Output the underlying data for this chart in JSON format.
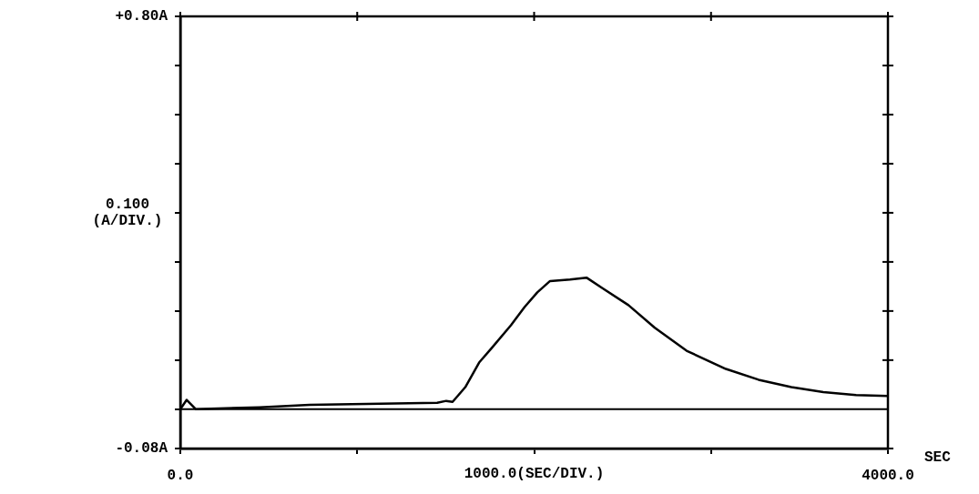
{
  "chart_data": {
    "type": "line",
    "xlabel": "1000.0(SEC/DIV.)",
    "ylabel": "0.100 (A/DIV.)",
    "annotations": [
      "SEC"
    ],
    "x": [
      0,
      36,
      88,
      448,
      731,
      1452,
      1503,
      1539,
      1611,
      1689,
      1761,
      1869,
      1946,
      2018,
      2090,
      2203,
      2296,
      2384,
      2533,
      2682,
      2862,
      3084,
      3269,
      3454,
      3635,
      3820,
      4000
    ],
    "values": [
      0,
      0.019,
      0,
      0.004,
      0.009,
      0.013,
      0.017,
      0.015,
      0.045,
      0.095,
      0.125,
      0.171,
      0.208,
      0.238,
      0.261,
      0.264,
      0.268,
      0.247,
      0.212,
      0.166,
      0.119,
      0.082,
      0.06,
      0.045,
      0.035,
      0.029,
      0.027
    ],
    "color": "#000000",
    "marker": "none",
    "line_style": "solid",
    "legend": false,
    "xlim": [
      0,
      4000
    ],
    "xticks": [
      {
        "value": 0,
        "label": "0.0"
      },
      {
        "value": 1000,
        "label": null
      },
      {
        "value": 2000,
        "label": null
      },
      {
        "value": 3000,
        "label": null
      },
      {
        "value": 4000,
        "label": "4000.0"
      }
    ],
    "ylim": [
      -0.08,
      0.8
    ],
    "yticks": [
      {
        "value": -0.08,
        "label": "-0.08A"
      },
      {
        "value": 0,
        "label": null
      },
      {
        "value": 0.1,
        "label": null
      },
      {
        "value": 0.2,
        "label": null
      },
      {
        "value": 0.3,
        "label": null
      },
      {
        "value": 0.4,
        "label": null
      },
      {
        "value": 0.5,
        "label": null
      },
      {
        "value": 0.6,
        "label": null
      },
      {
        "value": 0.7,
        "label": null
      },
      {
        "value": 0.8,
        "label": "+0.80A"
      }
    ],
    "ref_lines": [
      {
        "axis": "y",
        "value": 0,
        "label": null,
        "color": "#000000",
        "line_style": "solid"
      }
    ]
  }
}
